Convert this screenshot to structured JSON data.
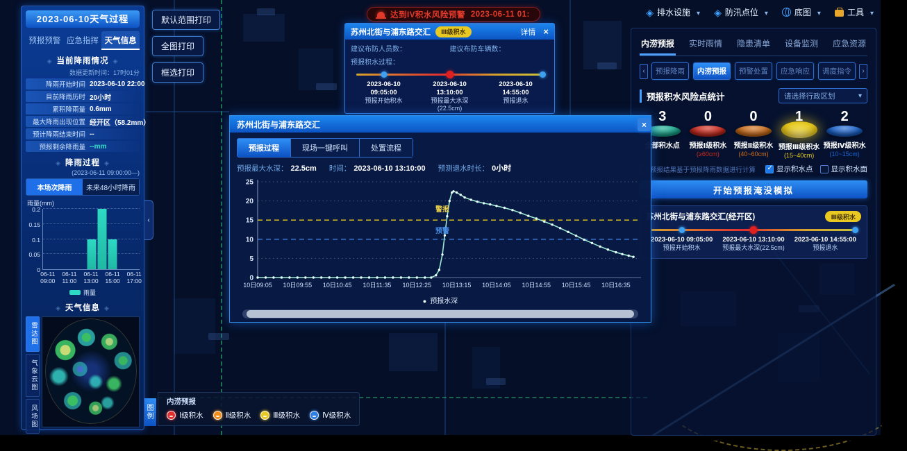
{
  "app": {
    "print_buttons": [
      "默认范围打印",
      "全图打印",
      "框选打印"
    ],
    "map_menus": [
      {
        "label": "排水设施",
        "icon": "layers-icon"
      },
      {
        "label": "防汛点位",
        "icon": "layers-icon"
      },
      {
        "label": "底图",
        "icon": "globe-icon"
      },
      {
        "label": "工具",
        "icon": "tools-icon"
      }
    ],
    "alert": {
      "text": "达到IV积水风险预警",
      "time": "2023-06-11 01:"
    }
  },
  "left_panel": {
    "title": "2023-06-10天气过程",
    "tabs": [
      {
        "label": "预报预警",
        "active": false
      },
      {
        "label": "应急指挥",
        "active": false
      },
      {
        "label": "天气信息",
        "active": true
      }
    ],
    "current_rain": {
      "section_title": "当前降雨情况",
      "update_time": "数据更新时间：17时01分",
      "rows": [
        {
          "label": "降雨开始时间",
          "value": "2023-06-10 22:00"
        },
        {
          "label": "目前降雨历时",
          "value": "20小时"
        },
        {
          "label": "累积降雨量",
          "value": "0.6mm"
        },
        {
          "label": "最大降雨出现位置",
          "value": "经开区（58.2mm）"
        },
        {
          "label": "预计降雨结束时间",
          "value": "--"
        },
        {
          "label": "预报剩余降雨量",
          "value": "--mm",
          "hl": true
        }
      ]
    },
    "rain_process": {
      "section_title": "降雨过程",
      "subtitle": "(2023-06-11 09:00:00—)",
      "tabs": [
        {
          "label": "本场次降雨",
          "active": true
        },
        {
          "label": "未来48小时降雨",
          "active": false
        }
      ]
    },
    "weather_info": {
      "section_title": "天气信息",
      "tabs": [
        {
          "label": "雷达图",
          "active": true
        },
        {
          "label": "气象云图",
          "active": false
        },
        {
          "label": "风场图",
          "active": false
        }
      ]
    }
  },
  "popup": {
    "title": "苏州北街与浦东路交汇",
    "badge": "Ⅲ级积水",
    "detail_label": "详情",
    "fields": [
      {
        "label": "建议布防人员数：",
        "value": ""
      },
      {
        "label": "建议布防车辆数：",
        "value": ""
      }
    ],
    "process_label": "预报积水过程：",
    "timeline": [
      {
        "date": "2023-06-10",
        "time": "09:05:00",
        "label": "预报开始积水",
        "sub": "",
        "dot": "#3f9ff0"
      },
      {
        "date": "2023-06-10",
        "time": "13:10:00",
        "label": "预报最大水深",
        "sub": "(22.5cm)",
        "dot": "#e02020",
        "big": true
      },
      {
        "date": "2023-06-10",
        "time": "14:55:00",
        "label": "预报退水",
        "sub": "",
        "dot": "#3f9ff0"
      }
    ]
  },
  "dialog": {
    "title": "苏州北街与浦东路交汇",
    "tabs": [
      {
        "label": "预报过程",
        "active": true
      },
      {
        "label": "现场一键呼叫",
        "active": false
      },
      {
        "label": "处置流程",
        "active": false
      }
    ],
    "info": [
      {
        "label": "预报最大水深：",
        "value": "22.5cm"
      },
      {
        "label": "时间：",
        "value": "2023-06-10 13:10:00"
      },
      {
        "label": "预测退水时长：",
        "value": "0小时"
      }
    ],
    "legend": "预报水深"
  },
  "right_panel": {
    "tabs": [
      {
        "label": "内涝预报",
        "active": true
      },
      {
        "label": "实时雨情",
        "active": false
      },
      {
        "label": "隐患清单",
        "active": false
      },
      {
        "label": "设备监测",
        "active": false
      },
      {
        "label": "应急资源",
        "active": false
      }
    ],
    "sub_tabs": [
      {
        "label": "预报降雨",
        "active": false
      },
      {
        "label": "内涝预报",
        "active": true
      },
      {
        "label": "预警处置",
        "active": false
      },
      {
        "label": "应急响应",
        "active": false
      },
      {
        "label": "调度指令",
        "active": false
      }
    ],
    "section_title": "预报积水风险点统计",
    "region_select": "请选择行政区划",
    "stats": [
      {
        "count": "3",
        "label": "全部积水点",
        "range": "",
        "c": "#18b093"
      },
      {
        "count": "0",
        "label": "预报Ⅰ级积水",
        "range": "(≥60cm)",
        "c": "#d42a1e"
      },
      {
        "count": "0",
        "label": "预报Ⅱ级积水",
        "range": "(40~60cm)",
        "c": "#d4711a"
      },
      {
        "count": "1",
        "label": "预报Ⅲ级积水",
        "range": "(15~40cm)",
        "c": "#e8cb1f",
        "highlight": true
      },
      {
        "count": "2",
        "label": "预报Ⅳ级积水",
        "range": "(10~15cm)",
        "c": "#1a66d4"
      }
    ],
    "note": "预报结果基于预报降雨数据进行计算",
    "checkboxes": [
      {
        "label": "显示积水点",
        "checked": true
      },
      {
        "label": "显示积水面",
        "checked": false
      }
    ],
    "simulate_button": "开始预报淹没模拟",
    "card": {
      "title": "苏州北街与浦东路交汇(经开区)",
      "badge": "Ⅲ级积水",
      "timeline": [
        {
          "date": "2023-06-10 09:05:00",
          "time": "",
          "label": "预报开始积水",
          "sub": "",
          "dot": "#3f9ff0"
        },
        {
          "date": "2023-06-10 13:10:00",
          "time": "",
          "label": "预报最大水深(22.5cm)",
          "sub": "",
          "dot": "#e02020",
          "big": true
        },
        {
          "date": "2023-06-10 14:55:00",
          "time": "",
          "label": "预报退水",
          "sub": "",
          "dot": "#3f9ff0"
        }
      ]
    }
  },
  "legend_bar": {
    "tab": "图例",
    "group": "内涝预报",
    "items": [
      {
        "label": "Ⅰ级积水",
        "c": "#e03030"
      },
      {
        "label": "Ⅱ级积水",
        "c": "#ef9020"
      },
      {
        "label": "Ⅲ级积水",
        "c": "#e8c821"
      },
      {
        "label": "Ⅳ级积水",
        "c": "#2f7fe0"
      }
    ]
  },
  "chart_data": [
    {
      "type": "bar",
      "title": "降雨过程-本场次降雨",
      "ylabel": "雨量(mm)",
      "series_name": "雨量",
      "date": "06-11",
      "categories": [
        "09:00",
        "10:00",
        "11:00",
        "12:00",
        "13:00",
        "14:00",
        "15:00",
        "16:00",
        "17:00"
      ],
      "values": [
        0,
        0,
        0,
        0,
        0.1,
        0.2,
        0.1,
        0,
        0
      ],
      "label_every": 2,
      "yticks": [
        0,
        0.05,
        0.1,
        0.15,
        0.2
      ],
      "ylim": [
        0,
        0.2
      ],
      "bar_color": "#2ed9c3"
    },
    {
      "type": "line",
      "title": "预报水深过程",
      "xlim": [
        0,
        478
      ],
      "ylim": [
        0,
        25
      ],
      "yticks": [
        0,
        5,
        10,
        15,
        20,
        25
      ],
      "ygrid": [
        5,
        20,
        25
      ],
      "thresholds": [
        {
          "value": 15,
          "color": "#e8cb1f",
          "label": "警报"
        },
        {
          "value": 10,
          "color": "#3f7fe0",
          "label": "预警"
        }
      ],
      "annotations": [
        {
          "x": 232,
          "y": 17.2,
          "label": "警报",
          "color": "#ecd24a"
        },
        {
          "x": 232,
          "y": 11.6,
          "label": "预警",
          "color": "#4a90e8"
        }
      ],
      "x_ticks": [
        {
          "x": 0,
          "label": "10日09:05"
        },
        {
          "x": 50,
          "label": "10日09:55"
        },
        {
          "x": 100,
          "label": "10日10:45"
        },
        {
          "x": 150,
          "label": "10日11:35"
        },
        {
          "x": 200,
          "label": "10日12:25"
        },
        {
          "x": 250,
          "label": "10日13:15"
        },
        {
          "x": 300,
          "label": "10日14:05"
        },
        {
          "x": 350,
          "label": "10日14:55"
        },
        {
          "x": 400,
          "label": "10日15:45"
        },
        {
          "x": 450,
          "label": "10日16:35"
        }
      ],
      "series": [
        {
          "name": "预报水深",
          "points": [
            [
              0,
              0
            ],
            [
              10,
              0
            ],
            [
              20,
              0
            ],
            [
              30,
              0
            ],
            [
              40,
              0
            ],
            [
              50,
              0
            ],
            [
              60,
              0
            ],
            [
              70,
              0
            ],
            [
              80,
              0
            ],
            [
              90,
              0
            ],
            [
              100,
              0
            ],
            [
              110,
              0
            ],
            [
              120,
              0
            ],
            [
              130,
              0
            ],
            [
              140,
              0
            ],
            [
              150,
              0
            ],
            [
              160,
              0
            ],
            [
              170,
              0
            ],
            [
              180,
              0
            ],
            [
              190,
              0
            ],
            [
              200,
              0
            ],
            [
              210,
              0
            ],
            [
              218,
              0
            ],
            [
              224,
              0.6
            ],
            [
              228,
              2
            ],
            [
              232,
              6
            ],
            [
              235,
              11
            ],
            [
              238,
              16
            ],
            [
              241,
              20
            ],
            [
              244,
              22.2
            ],
            [
              246,
              22.5
            ],
            [
              250,
              22.2
            ],
            [
              255,
              21.6
            ],
            [
              260,
              20.9
            ],
            [
              268,
              20.3
            ],
            [
              276,
              19.8
            ],
            [
              284,
              19.4
            ],
            [
              292,
              19.1
            ],
            [
              300,
              18.7
            ],
            [
              310,
              18.2
            ],
            [
              320,
              17.6
            ],
            [
              330,
              16.9
            ],
            [
              340,
              16.1
            ],
            [
              350,
              15.4
            ],
            [
              360,
              14.6
            ],
            [
              370,
              13.8
            ],
            [
              380,
              12.9
            ],
            [
              390,
              11.9
            ],
            [
              400,
              10.9
            ],
            [
              410,
              9.9
            ],
            [
              420,
              9.0
            ],
            [
              430,
              8.1
            ],
            [
              440,
              7.3
            ],
            [
              450,
              6.6
            ],
            [
              458,
              6.1
            ],
            [
              466,
              5.7
            ],
            [
              472,
              5.4
            ]
          ]
        }
      ]
    }
  ]
}
